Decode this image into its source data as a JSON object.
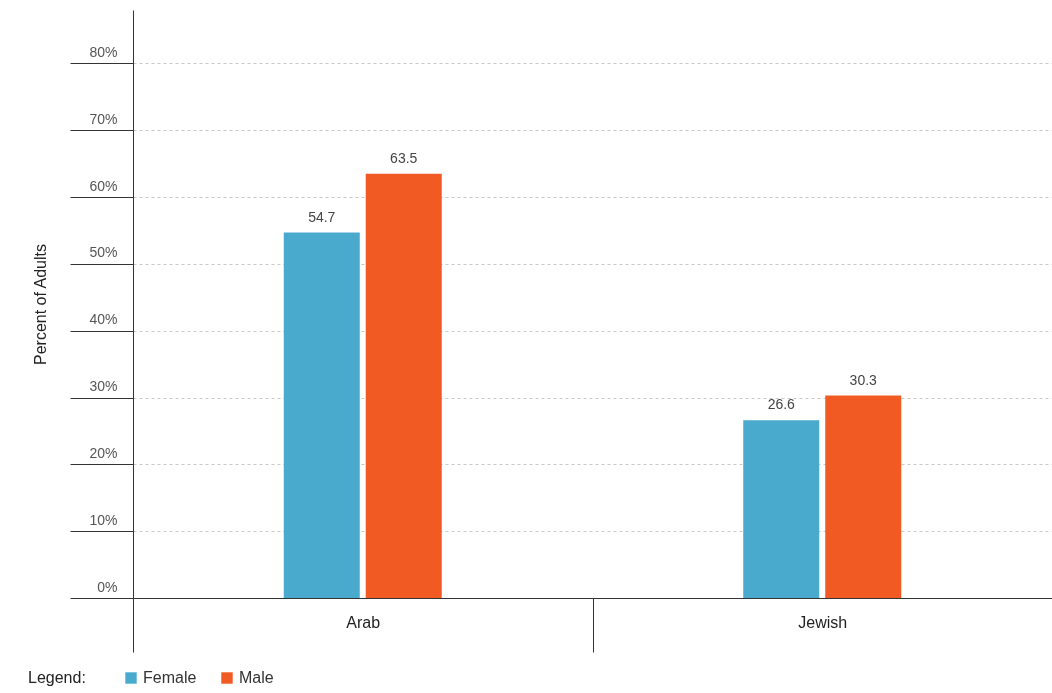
{
  "chart_data": {
    "type": "bar",
    "ylabel": "Percent of Adults",
    "legend_title": "Legend:",
    "categories": [
      "Arab",
      "Jewish"
    ],
    "series": [
      {
        "name": "Female",
        "color": "#4aaacd",
        "values": [
          54.7,
          26.6
        ]
      },
      {
        "name": "Male",
        "color": "#f15a22",
        "values": [
          63.5,
          30.3
        ]
      }
    ],
    "ylim": [
      0,
      88
    ],
    "yticks": [
      {
        "value": 0,
        "label": "0%"
      },
      {
        "value": 10,
        "label": "10%"
      },
      {
        "value": 20,
        "label": "20%"
      },
      {
        "value": 30,
        "label": "30%"
      },
      {
        "value": 40,
        "label": "40%"
      },
      {
        "value": 50,
        "label": "50%"
      },
      {
        "value": 60,
        "label": "60%"
      },
      {
        "value": 70,
        "label": "70%"
      },
      {
        "value": 80,
        "label": "80%"
      }
    ],
    "grid": "y",
    "legend": "bottom left",
    "data_labels": true
  }
}
